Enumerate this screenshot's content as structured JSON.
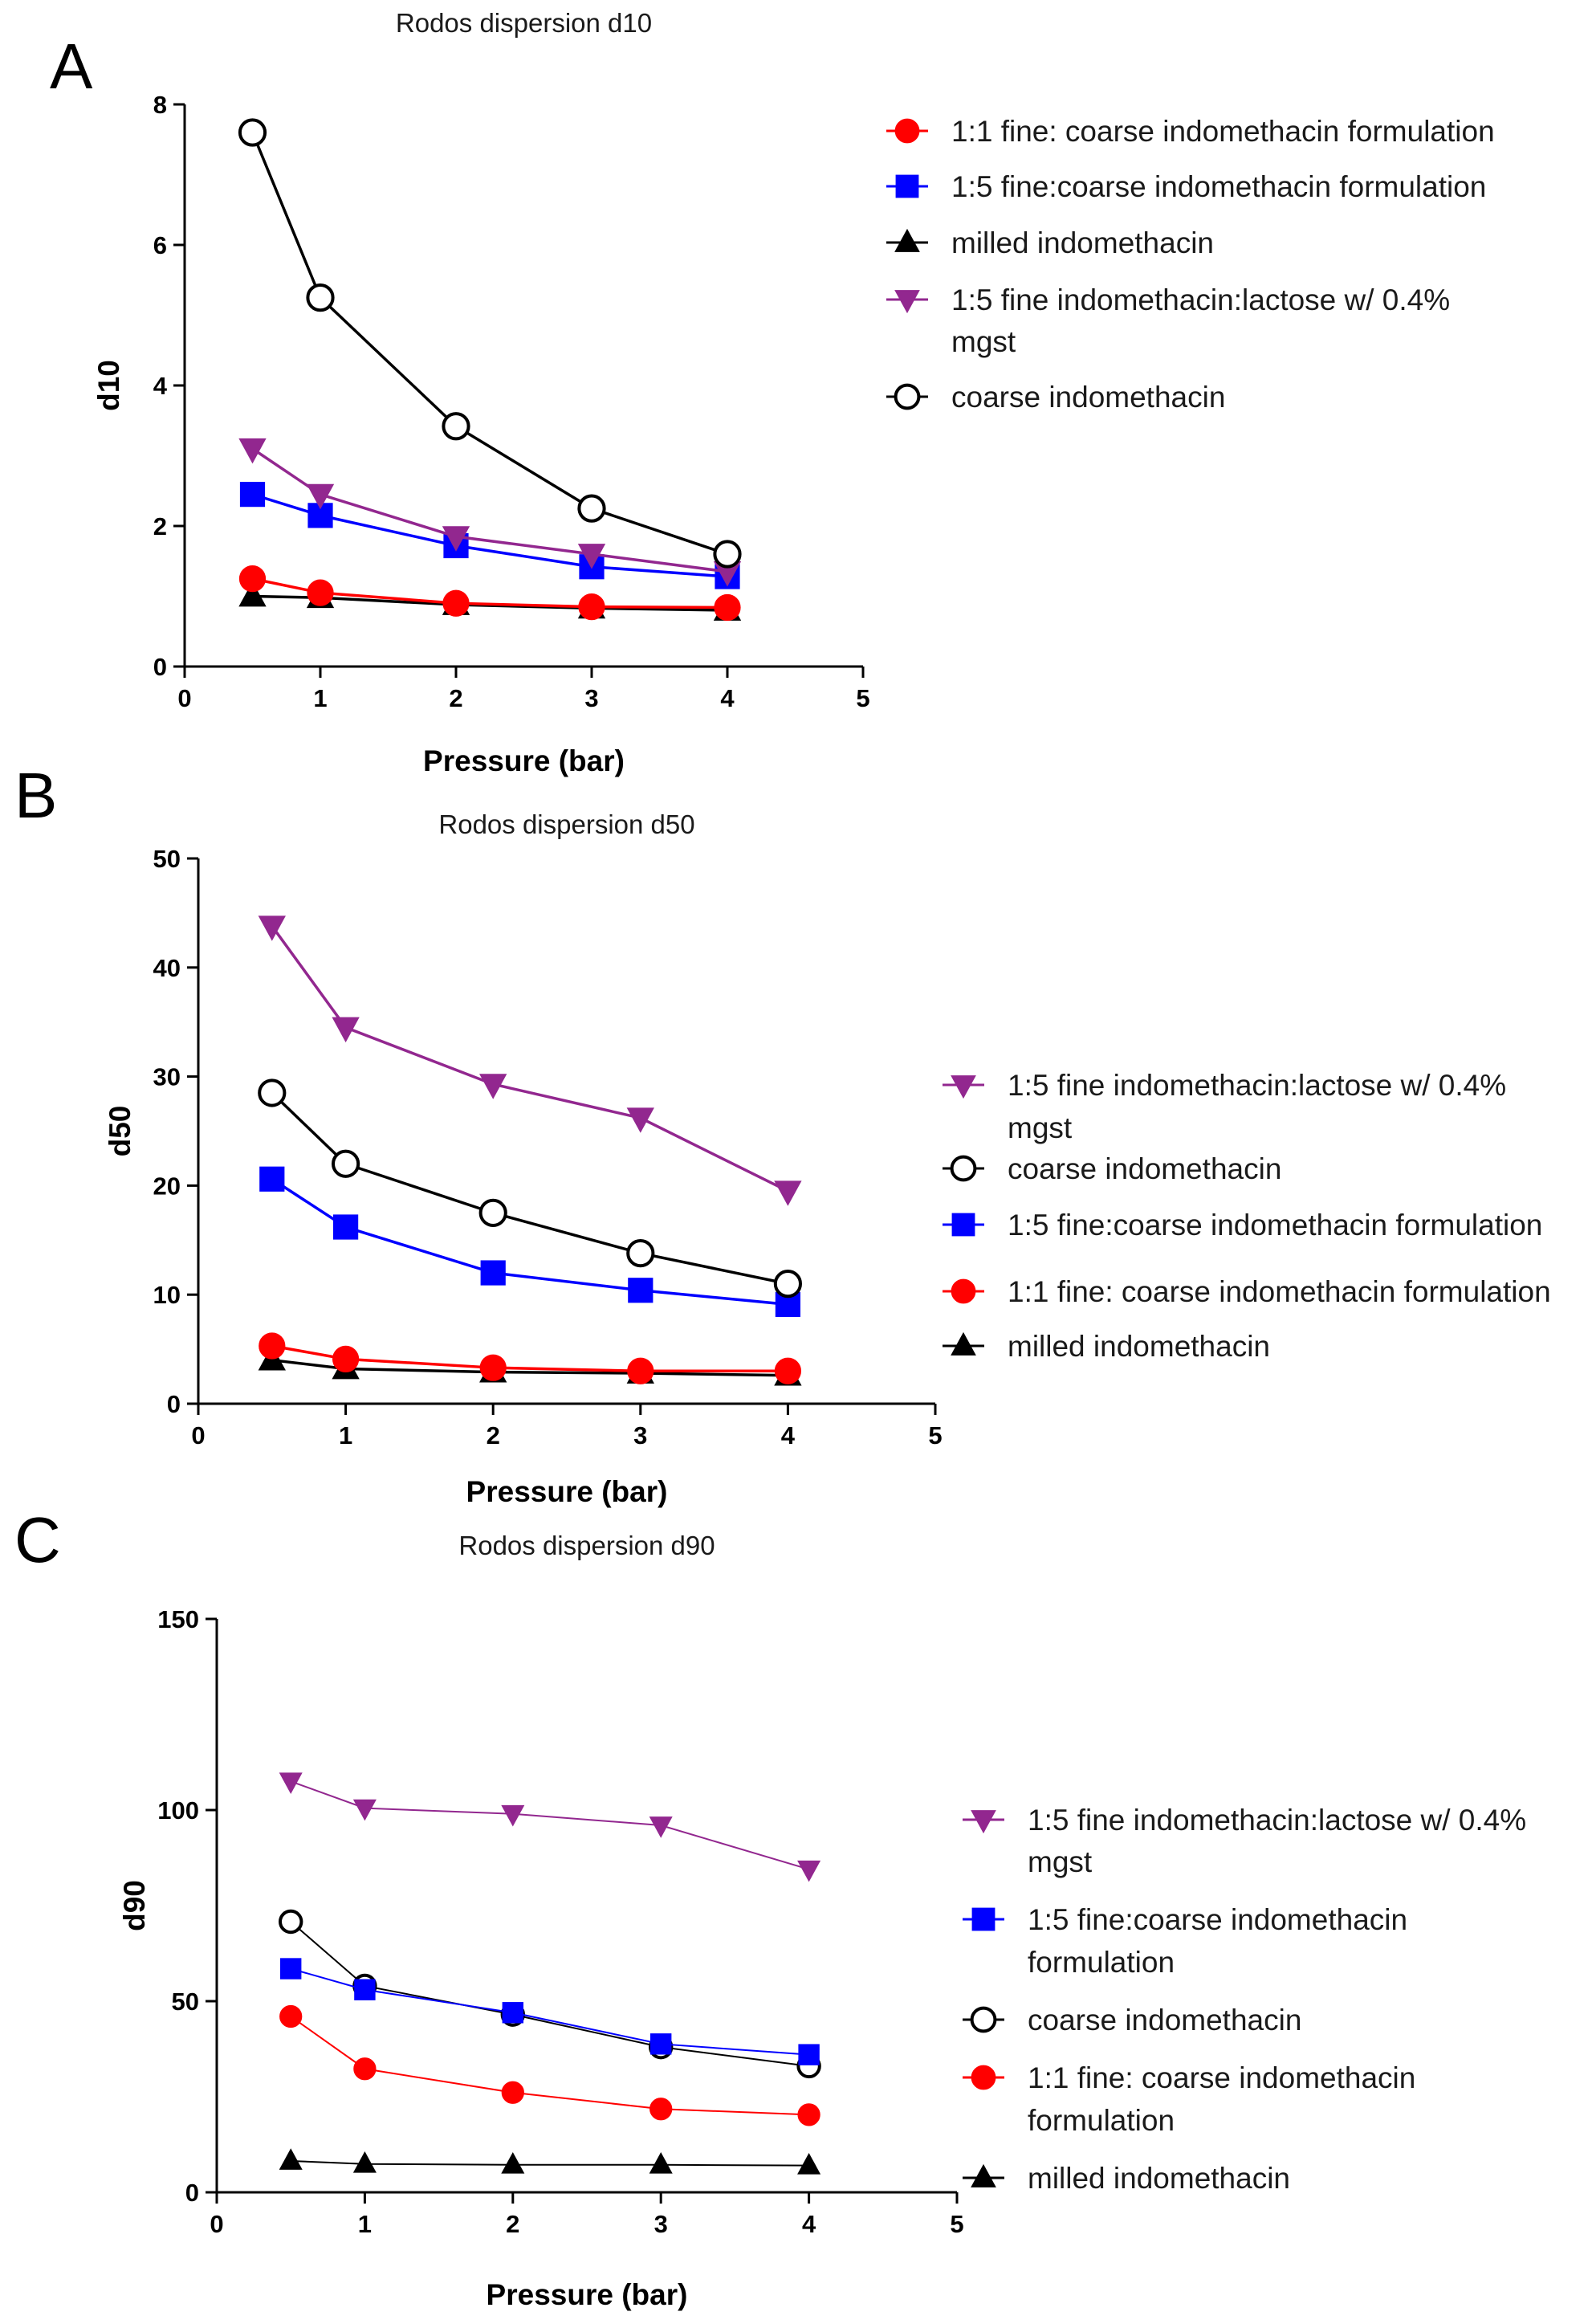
{
  "chart_data": [
    {
      "panel": "A",
      "type": "line",
      "title": "Rodos dispersion d10",
      "xlabel": "Pressure (bar)",
      "ylabel": "d10",
      "xlim": [
        0,
        5
      ],
      "ylim": [
        0,
        8
      ],
      "xticks": [
        0,
        1,
        2,
        3,
        4,
        5
      ],
      "yticks": [
        0,
        2,
        4,
        6,
        8
      ],
      "x": [
        0.5,
        1,
        2,
        3,
        4
      ],
      "legend_order": [
        "f11",
        "f15",
        "milled",
        "lac",
        "coarse"
      ],
      "series": [
        {
          "key": "coarse",
          "name": "coarse indomethacin",
          "marker": "circle-open",
          "color": "#000000",
          "values": [
            7.6,
            5.25,
            3.42,
            2.25,
            1.6
          ]
        },
        {
          "key": "lac",
          "name": "1:5 fine indomethacin:lactose w/ 0.4% mgst",
          "marker": "triangle-down",
          "color": "#92278F",
          "values": [
            3.1,
            2.45,
            1.85,
            1.6,
            1.35
          ]
        },
        {
          "key": "f15",
          "name": "1:5 fine:coarse indomethacin formulation",
          "marker": "square",
          "color": "#0000FF",
          "values": [
            2.45,
            2.15,
            1.72,
            1.42,
            1.28
          ]
        },
        {
          "key": "f11",
          "name": "1:1 fine: coarse indomethacin formulation",
          "marker": "circle",
          "color": "#FF0000",
          "values": [
            1.25,
            1.05,
            0.9,
            0.85,
            0.84
          ]
        },
        {
          "key": "milled",
          "name": "milled indomethacin",
          "marker": "triangle-up",
          "color": "#000000",
          "values": [
            1.0,
            0.98,
            0.88,
            0.83,
            0.8
          ]
        }
      ]
    },
    {
      "panel": "B",
      "type": "line",
      "title": "Rodos dispersion d50",
      "xlabel": "Pressure (bar)",
      "ylabel": "d50",
      "xlim": [
        0,
        5
      ],
      "ylim": [
        0,
        50
      ],
      "xticks": [
        0,
        1,
        2,
        3,
        4,
        5
      ],
      "yticks": [
        0,
        10,
        20,
        30,
        40,
        50
      ],
      "x": [
        0.5,
        1,
        2,
        3,
        4
      ],
      "legend_order": [
        "lac",
        "coarse",
        "f15",
        "f11",
        "milled"
      ],
      "series": [
        {
          "key": "lac",
          "name": "1:5 fine indomethacin:lactose w/ 0.4% mgst",
          "marker": "triangle-down",
          "color": "#92278F",
          "values": [
            43.8,
            34.5,
            29.3,
            26.2,
            19.5
          ]
        },
        {
          "key": "coarse",
          "name": "coarse indomethacin",
          "marker": "circle-open",
          "color": "#000000",
          "values": [
            28.5,
            22.0,
            17.5,
            13.8,
            11.0
          ]
        },
        {
          "key": "f15",
          "name": "1:5 fine:coarse indomethacin formulation",
          "marker": "square",
          "color": "#0000FF",
          "values": [
            20.6,
            16.2,
            12.0,
            10.4,
            9.1
          ]
        },
        {
          "key": "f11",
          "name": "1:1 fine: coarse indomethacin formulation",
          "marker": "circle",
          "color": "#FF0000",
          "values": [
            5.3,
            4.1,
            3.3,
            3.0,
            3.0
          ]
        },
        {
          "key": "milled",
          "name": "milled indomethacin",
          "marker": "triangle-up",
          "color": "#000000",
          "values": [
            4.0,
            3.2,
            2.9,
            2.8,
            2.6
          ]
        }
      ]
    },
    {
      "panel": "C",
      "type": "line",
      "title": "Rodos dispersion d90",
      "xlabel": "Pressure (bar)",
      "ylabel": "d90",
      "xlim": [
        0,
        5
      ],
      "ylim": [
        0,
        150
      ],
      "xticks": [
        0,
        1,
        2,
        3,
        4,
        5
      ],
      "yticks": [
        0,
        50,
        100,
        150
      ],
      "x": [
        0.5,
        1,
        2,
        3,
        4
      ],
      "legend_order": [
        "lac",
        "f15",
        "coarse",
        "f11",
        "milled"
      ],
      "series": [
        {
          "key": "lac",
          "name": "1:5 fine indomethacin:lactose w/ 0.4% mgst",
          "marker": "triangle-down",
          "color": "#92278F",
          "values": [
            107.5,
            100.5,
            99.0,
            96.0,
            84.5
          ]
        },
        {
          "key": "f15",
          "name": "1:5 fine:coarse indomethacin formulation",
          "marker": "square",
          "color": "#0000FF",
          "values": [
            58.5,
            53.0,
            47.0,
            38.8,
            36.0
          ]
        },
        {
          "key": "coarse",
          "name": "coarse indomethacin",
          "marker": "circle-open",
          "color": "#000000",
          "values": [
            70.8,
            54.0,
            46.5,
            38.0,
            33.0
          ]
        },
        {
          "key": "f11",
          "name": "1:1 fine: coarse indomethacin formulation",
          "marker": "circle",
          "color": "#FF0000",
          "values": [
            46.0,
            32.3,
            26.1,
            21.8,
            20.3
          ]
        },
        {
          "key": "milled",
          "name": "milled indomethacin",
          "marker": "triangle-up",
          "color": "#000000",
          "values": [
            8.2,
            7.4,
            7.2,
            7.2,
            7.0
          ]
        }
      ]
    }
  ]
}
